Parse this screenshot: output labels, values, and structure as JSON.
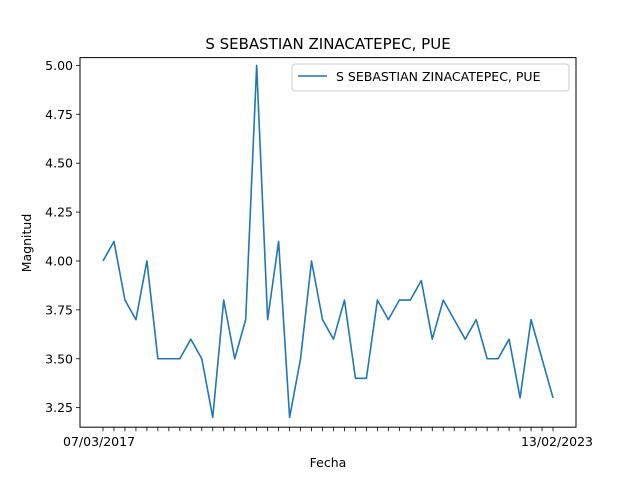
{
  "chart_data": {
    "type": "line",
    "title": "S SEBASTIAN ZINACATEPEC, PUE",
    "xlabel": "Fecha",
    "ylabel": "Magnitud",
    "ylim": [
      3.15,
      5.04
    ],
    "yticks": [
      "3.25",
      "3.50",
      "3.75",
      "4.00",
      "4.25",
      "4.50",
      "4.75",
      "5.00"
    ],
    "first_x_label": "07/03/2017",
    "last_x_label": "13/02/2023",
    "legend_position": "top-right",
    "grid": false,
    "series": [
      {
        "name": "S SEBASTIAN ZINACATEPEC, PUE",
        "color": "#1f77b4",
        "values": [
          4.0,
          4.1,
          3.8,
          3.7,
          4.0,
          3.5,
          3.5,
          3.5,
          3.6,
          3.5,
          3.2,
          3.8,
          3.5,
          3.7,
          5.0,
          3.7,
          4.1,
          3.2,
          3.5,
          4.0,
          3.7,
          3.6,
          3.8,
          3.4,
          3.4,
          3.8,
          3.7,
          3.8,
          3.8,
          3.9,
          3.6,
          3.8,
          3.7,
          3.6,
          3.7,
          3.5,
          3.5,
          3.6,
          3.3,
          3.7,
          3.5,
          3.3
        ]
      }
    ]
  }
}
